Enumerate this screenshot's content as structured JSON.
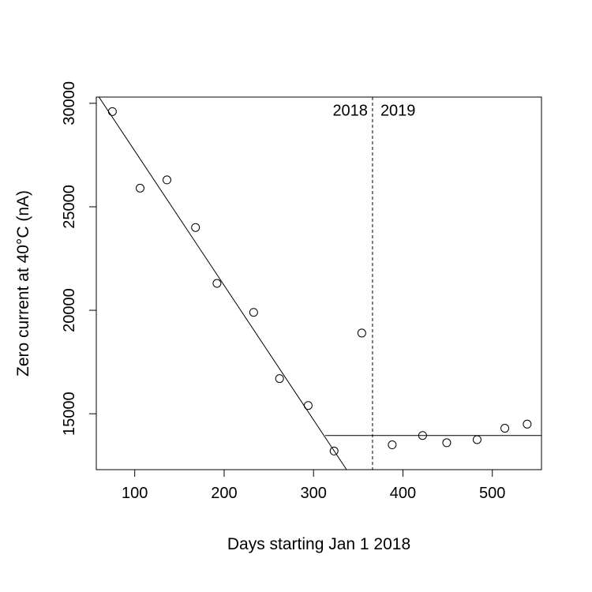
{
  "chart_data": {
    "type": "scatter",
    "title": "",
    "xlabel": "Days starting Jan 1 2018",
    "ylabel": "Zero current at 40°C  (nA)",
    "xlim": [
      57,
      555
    ],
    "ylim": [
      12300,
      30300
    ],
    "x_ticks": [
      100,
      200,
      300,
      400,
      500
    ],
    "y_ticks": [
      15000,
      20000,
      25000,
      30000
    ],
    "grid": false,
    "points": [
      {
        "x": 75,
        "y": 29600
      },
      {
        "x": 106,
        "y": 25900
      },
      {
        "x": 136,
        "y": 26300
      },
      {
        "x": 168,
        "y": 24000
      },
      {
        "x": 192,
        "y": 21300
      },
      {
        "x": 233,
        "y": 19900
      },
      {
        "x": 262,
        "y": 16700
      },
      {
        "x": 294,
        "y": 15400
      },
      {
        "x": 323,
        "y": 13200
      },
      {
        "x": 354,
        "y": 18900
      },
      {
        "x": 388,
        "y": 13500
      },
      {
        "x": 422,
        "y": 13950
      },
      {
        "x": 449,
        "y": 13600
      },
      {
        "x": 483,
        "y": 13750
      },
      {
        "x": 514,
        "y": 14300
      },
      {
        "x": 539,
        "y": 14500
      }
    ],
    "fit_lines": [
      {
        "x": [
          60,
          337
        ],
        "y": [
          30300,
          12300
        ]
      },
      {
        "x": 313,
        "x_end": 555,
        "y": 13950
      }
    ],
    "vline": {
      "x": 366,
      "style": "dashed"
    },
    "annotations": [
      {
        "text": "2018",
        "x": 366,
        "y": 29750,
        "side": "left"
      },
      {
        "text": "2019",
        "x": 366,
        "y": 29750,
        "side": "right"
      }
    ]
  }
}
